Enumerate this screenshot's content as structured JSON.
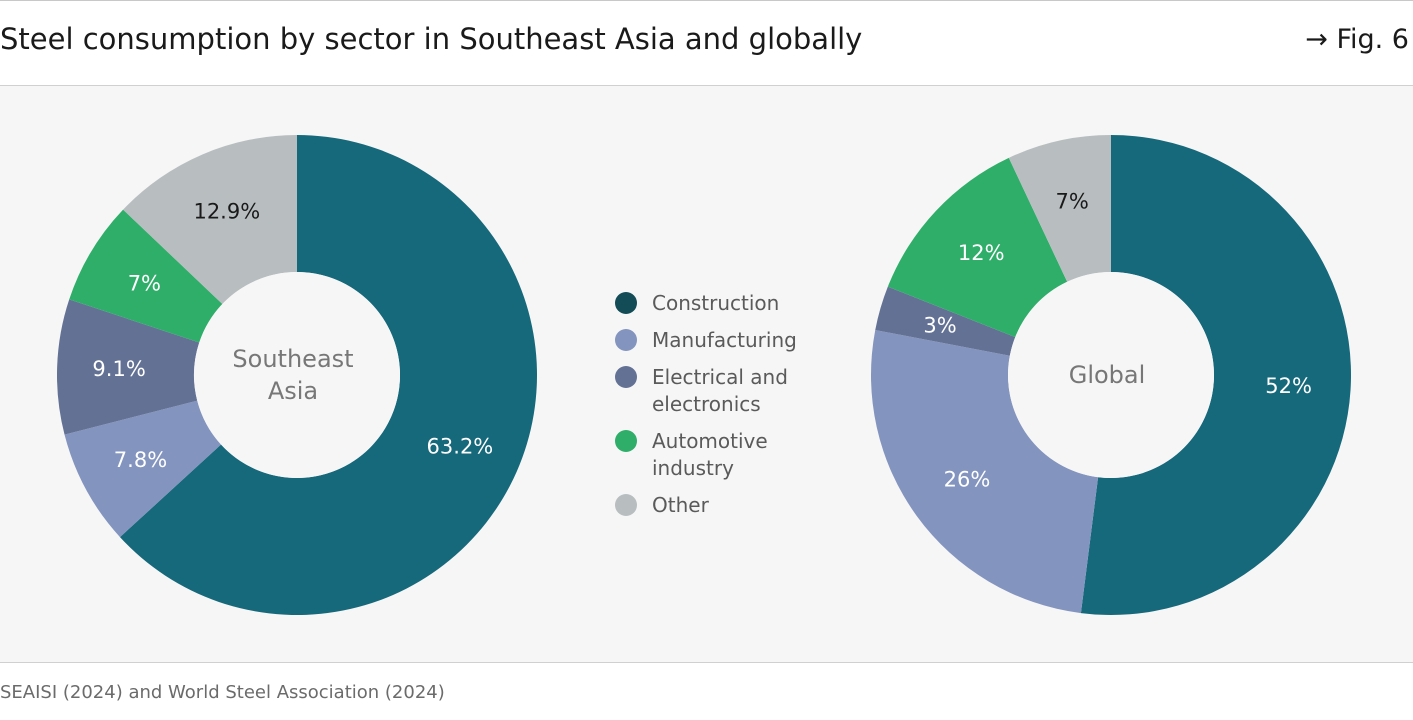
{
  "header": {
    "title": "Steel consumption by sector in Southeast Asia and globally",
    "fig_ref": "→ Fig. 6"
  },
  "source": "SEAISI (2024) and World Steel Association (2024)",
  "colors": {
    "construction": "#16687b",
    "manufacturing": "#8394bf",
    "electrical": "#637194",
    "automotive": "#2fae69",
    "other": "#b8bec0",
    "legend_construction": "#134c57"
  },
  "chart_data": {
    "type": "pie",
    "legend": {
      "placement": "center",
      "entries": [
        {
          "key": "construction",
          "lines": [
            "Construction"
          ]
        },
        {
          "key": "manufacturing",
          "lines": [
            "Manufacturing"
          ]
        },
        {
          "key": "electrical",
          "lines": [
            "Electrical and",
            "electronics"
          ]
        },
        {
          "key": "automotive",
          "lines": [
            "Automotive",
            "industry"
          ]
        },
        {
          "key": "other",
          "lines": [
            "Other"
          ]
        }
      ]
    },
    "charts": [
      {
        "center_label": [
          "Southeast",
          "Asia"
        ],
        "slices": [
          {
            "key": "construction",
            "value": 63.2,
            "label": "63.2%"
          },
          {
            "key": "manufacturing",
            "value": 7.8,
            "label": "7.8%"
          },
          {
            "key": "electrical",
            "value": 9.1,
            "label": "9.1%"
          },
          {
            "key": "automotive",
            "value": 7,
            "label": "7%"
          },
          {
            "key": "other",
            "value": 12.9,
            "label": "12.9%"
          }
        ]
      },
      {
        "center_label": [
          "Global"
        ],
        "slices": [
          {
            "key": "construction",
            "value": 52,
            "label": "52%"
          },
          {
            "key": "manufacturing",
            "value": 26,
            "label": "26%"
          },
          {
            "key": "electrical",
            "value": 3,
            "label": "3%"
          },
          {
            "key": "automotive",
            "value": 12,
            "label": "12%"
          },
          {
            "key": "other",
            "value": 7,
            "label": "7%"
          }
        ]
      }
    ]
  }
}
